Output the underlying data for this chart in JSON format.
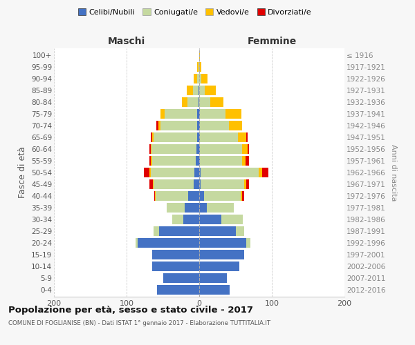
{
  "age_groups": [
    "0-4",
    "5-9",
    "10-14",
    "15-19",
    "20-24",
    "25-29",
    "30-34",
    "35-39",
    "40-44",
    "45-49",
    "50-54",
    "55-59",
    "60-64",
    "65-69",
    "70-74",
    "75-79",
    "80-84",
    "85-89",
    "90-94",
    "95-99",
    "100+"
  ],
  "birth_years": [
    "2012-2016",
    "2007-2011",
    "2002-2006",
    "1997-2001",
    "1992-1996",
    "1987-1991",
    "1982-1986",
    "1977-1981",
    "1972-1976",
    "1967-1971",
    "1962-1966",
    "1957-1961",
    "1952-1956",
    "1947-1951",
    "1942-1946",
    "1937-1941",
    "1932-1936",
    "1927-1931",
    "1922-1926",
    "1917-1921",
    "≤ 1916"
  ],
  "colors": {
    "celibi": "#4472C4",
    "coniugati": "#c5d9a0",
    "vedovi": "#ffc000",
    "divorziati": "#e00000"
  },
  "males": {
    "celibi": [
      58,
      50,
      65,
      65,
      85,
      55,
      22,
      20,
      15,
      8,
      7,
      5,
      4,
      3,
      3,
      3,
      1,
      1,
      0,
      0,
      0
    ],
    "coniugati": [
      0,
      0,
      0,
      0,
      3,
      8,
      15,
      25,
      45,
      55,
      60,
      60,
      62,
      60,
      50,
      45,
      15,
      8,
      3,
      1,
      0
    ],
    "vedovi": [
      0,
      0,
      0,
      0,
      0,
      0,
      0,
      0,
      1,
      1,
      2,
      2,
      1,
      2,
      3,
      5,
      8,
      8,
      5,
      2,
      0
    ],
    "divorziati": [
      0,
      0,
      0,
      0,
      0,
      0,
      0,
      0,
      1,
      5,
      7,
      2,
      2,
      2,
      3,
      0,
      0,
      0,
      0,
      0,
      0
    ]
  },
  "females": {
    "celibi": [
      42,
      38,
      55,
      62,
      65,
      50,
      30,
      10,
      7,
      2,
      2,
      1,
      1,
      1,
      1,
      1,
      0,
      0,
      0,
      0,
      0
    ],
    "coniugati": [
      0,
      0,
      0,
      0,
      5,
      12,
      30,
      38,
      50,
      60,
      80,
      58,
      58,
      52,
      40,
      35,
      15,
      8,
      3,
      0,
      0
    ],
    "vedovi": [
      0,
      0,
      0,
      0,
      0,
      0,
      0,
      0,
      2,
      3,
      5,
      5,
      8,
      12,
      18,
      22,
      18,
      15,
      8,
      3,
      1
    ],
    "divorziati": [
      0,
      0,
      0,
      0,
      0,
      0,
      0,
      0,
      3,
      4,
      8,
      5,
      2,
      2,
      0,
      0,
      0,
      0,
      0,
      0,
      0
    ]
  },
  "xlim": 200,
  "title": "Popolazione per età, sesso e stato civile - 2017",
  "subtitle": "COMUNE DI FOGLIANISE (BN) - Dati ISTAT 1° gennaio 2017 - Elaborazione TUTTITALIA.IT",
  "ylabel_left": "Fasce di età",
  "ylabel_right": "Anni di nascita",
  "xlabel_left": "Maschi",
  "xlabel_right": "Femmine",
  "legend_labels": [
    "Celibi/Nubili",
    "Coniugati/e",
    "Vedovi/e",
    "Divorziati/e"
  ],
  "bg_color": "#f7f7f7",
  "plot_bg": "#ffffff",
  "grid_color": "#cccccc"
}
